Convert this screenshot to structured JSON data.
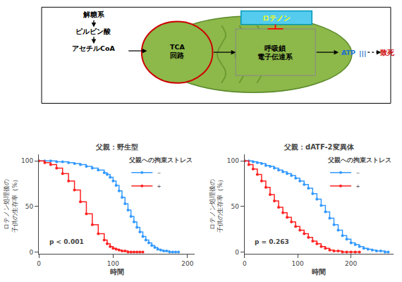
{
  "chart_data": [
    {
      "type": "diagram",
      "annotations": [
        {
          "text": "解糖系"
        },
        {
          "text": "ピルビン酸"
        },
        {
          "text": "アセチルCoA"
        },
        {
          "text": "TCA\n回路"
        },
        {
          "text": "呼吸鎖\n電子伝達系"
        },
        {
          "text": "ロテノン",
          "color": "#ffff00"
        },
        {
          "text": "ATP",
          "color": "#1e6fcc"
        },
        {
          "text": "|||",
          "color": "#1e6fcc"
        },
        {
          "text": "致死",
          "color": "#cc0000"
        }
      ],
      "colors": [
        "#8db84a",
        "#5a8a2a",
        "#6a9a30",
        "#cc0000",
        "#888888",
        "#55ccee",
        "#0099bb",
        "#ff0000"
      ]
    },
    {
      "type": "step",
      "title": "父親：野生型",
      "x_label": "時間",
      "y_label": "ロテノン処理後の\n子供の生存率（%）",
      "annotations": [
        "p < 0.001"
      ],
      "legend_title": "父親への拘束ストレス",
      "legend": "upper right",
      "grid": false,
      "marker": "circle",
      "xlim": [
        0,
        210
      ],
      "ylim": [
        -2,
        107
      ],
      "xticks": [
        0,
        100,
        200
      ],
      "yticks": [
        0,
        50,
        100
      ],
      "series": [
        {
          "name": "－",
          "color": "#3399ff",
          "x": [
            0,
            8,
            16,
            24,
            32,
            40,
            48,
            56,
            64,
            72,
            80,
            88,
            92,
            96,
            100,
            104,
            108,
            112,
            116,
            120,
            124,
            128,
            132,
            136,
            140,
            144,
            148,
            152,
            156,
            160,
            164,
            168,
            172,
            176,
            180,
            184,
            188
          ],
          "values": [
            100,
            100,
            100,
            99,
            99,
            98,
            97,
            96,
            94,
            92,
            90,
            87,
            85,
            82,
            78,
            73,
            67,
            60,
            53,
            46,
            39,
            33,
            27,
            22,
            17,
            13,
            10,
            7,
            5,
            3,
            2,
            1,
            1,
            0,
            0,
            0,
            0
          ]
        },
        {
          "name": "＋",
          "color": "#ff2222",
          "x": [
            0,
            8,
            16,
            24,
            32,
            40,
            48,
            56,
            64,
            72,
            80,
            88,
            92,
            96,
            100,
            104,
            108,
            112,
            116,
            120,
            124,
            128,
            132,
            136,
            140
          ],
          "values": [
            100,
            98,
            96,
            92,
            86,
            78,
            68,
            55,
            42,
            30,
            20,
            13,
            9,
            6,
            4,
            3,
            2,
            1,
            1,
            0,
            0,
            0,
            0,
            0,
            0
          ]
        }
      ]
    },
    {
      "type": "step",
      "title": "父親：dATF-2変異体",
      "x_label": "時間",
      "y_label": "ロテノン処理後の\n子供の生存率（%）",
      "annotations": [
        "p = 0.263"
      ],
      "legend_title": "父親への拘束ストレス",
      "legend": "upper right",
      "grid": false,
      "marker": "circle",
      "xlim": [
        0,
        280
      ],
      "ylim": [
        -2,
        107
      ],
      "xticks": [
        0,
        100,
        200
      ],
      "yticks": [
        0,
        50,
        100
      ],
      "series": [
        {
          "name": "－",
          "color": "#3399ff",
          "x": [
            0,
            8,
            16,
            24,
            32,
            40,
            48,
            56,
            64,
            72,
            80,
            88,
            96,
            104,
            112,
            120,
            128,
            136,
            144,
            152,
            160,
            168,
            176,
            184,
            192,
            200,
            208,
            216,
            224,
            232,
            240,
            248,
            256,
            264,
            270
          ],
          "values": [
            100,
            100,
            99,
            98,
            97,
            95,
            94,
            92,
            90,
            88,
            86,
            84,
            81,
            78,
            74,
            70,
            64,
            58,
            51,
            44,
            37,
            30,
            24,
            18,
            14,
            10,
            8,
            6,
            4,
            3,
            2,
            1,
            1,
            0,
            0
          ]
        },
        {
          "name": "＋",
          "color": "#ff2222",
          "x": [
            0,
            8,
            16,
            24,
            32,
            40,
            48,
            56,
            64,
            72,
            80,
            88,
            96,
            104,
            112,
            120,
            128,
            136,
            144,
            152,
            160,
            168,
            176,
            184,
            192,
            200,
            208,
            216
          ],
          "values": [
            100,
            96,
            91,
            85,
            78,
            71,
            63,
            56,
            49,
            43,
            38,
            33,
            28,
            24,
            20,
            16,
            12,
            9,
            6,
            4,
            2,
            1,
            1,
            0,
            0,
            0,
            0,
            0
          ]
        }
      ]
    }
  ]
}
